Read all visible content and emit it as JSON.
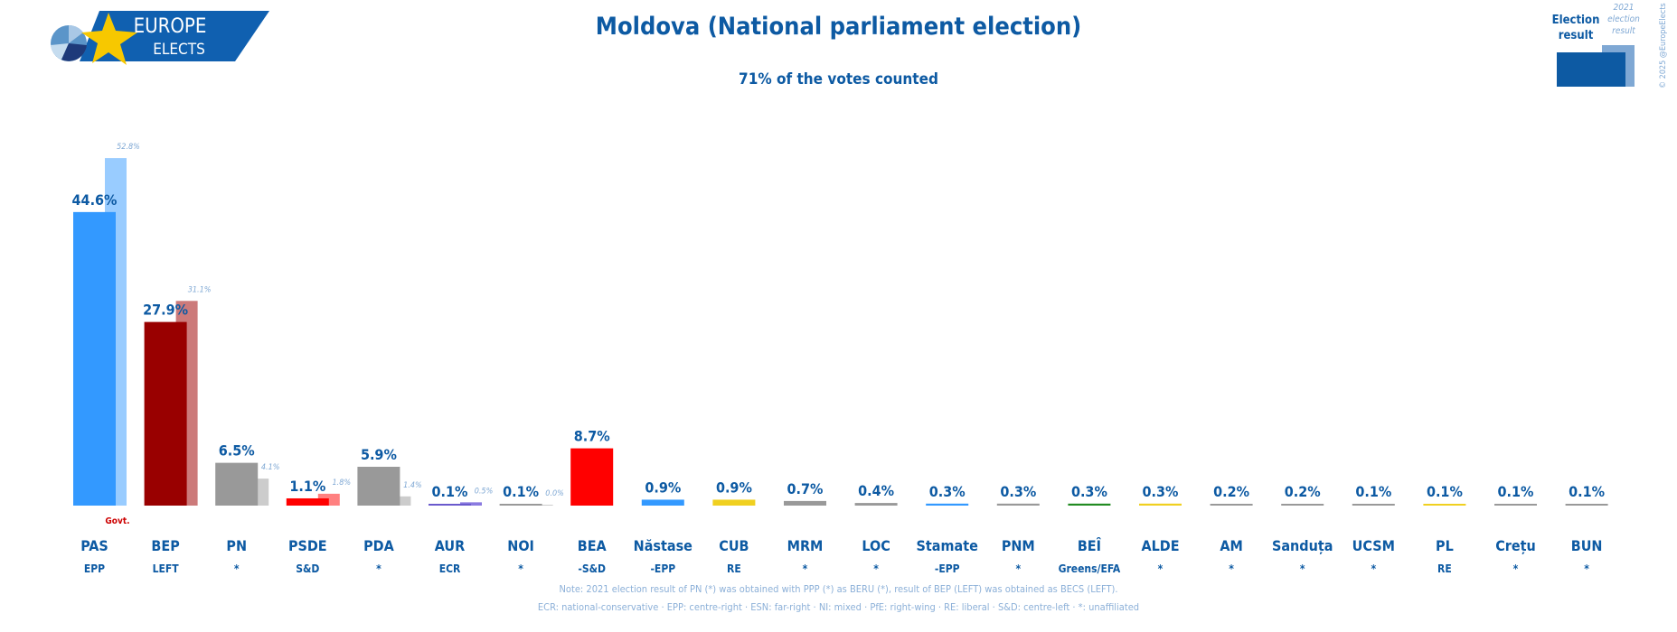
{
  "header": {
    "logo_line1": "EUROPE",
    "logo_line2": "ELECTS",
    "title": "Moldova (National parliament election)",
    "subtitle": "71% of the votes counted"
  },
  "legend": {
    "current_label": "Election result",
    "previous_label": "2021 election result",
    "copyright": "© 2025 @EuropeElects",
    "current_color": "#0d5aa3",
    "previous_color": "#7fa8d4"
  },
  "notes": {
    "line1": "Note: 2021 election result of PN (*) was obtained with PPP (*) as BERU (*), result of BEP (LEFT) was obtained as BECS (LEFT).",
    "line2": "ECR: national-conservative · EPP: centre-right · ESN: far-right · NI: mixed · PfE: right-wing · RE: liberal · S&D: centre-left · *: unaffiliated"
  },
  "chart_data": {
    "type": "bar",
    "title": "Moldova (National parliament election)",
    "subtitle": "71% of the votes counted",
    "xlabel": "",
    "ylabel": "",
    "ylim": [
      0,
      55
    ],
    "grid": false,
    "unit": "%",
    "categories": [
      "PAS",
      "BEP",
      "PN",
      "PSDE",
      "PDA",
      "AUR",
      "NOI",
      "BEA",
      "Năstase",
      "CUB",
      "MRM",
      "LOC",
      "Stamate",
      "PNM",
      "BEÎ",
      "ALDE",
      "AM",
      "Sanduța",
      "UCSM",
      "PL",
      "Crețu",
      "BUN"
    ],
    "affiliations": [
      "EPP",
      "LEFT",
      "*",
      "S&D",
      "*",
      "ECR",
      "*",
      "-S&D",
      "-EPP",
      "RE",
      "*",
      "*",
      "-EPP",
      "*",
      "Greens/EFA",
      "*",
      "*",
      "*",
      "*",
      "RE",
      "*",
      "*"
    ],
    "annotations": [
      {
        "category": "PAS",
        "text": "Govt."
      }
    ],
    "colors": [
      "#3399ff",
      "#990000",
      "#999999",
      "#ff0000",
      "#999999",
      "#6a5acd",
      "#999999",
      "#ff0000",
      "#3399ff",
      "#f0d020",
      "#999999",
      "#999999",
      "#3399ff",
      "#999999",
      "#228b22",
      "#f0d020",
      "#999999",
      "#999999",
      "#999999",
      "#f0d020",
      "#999999",
      "#999999"
    ],
    "prev_colors": [
      "#99ccff",
      "#cc7a7a",
      "#cccccc",
      "#ff8080",
      "#cccccc",
      "#8a7ae0"
    ],
    "series": [
      {
        "name": "Election result",
        "values": [
          44.6,
          27.9,
          6.5,
          1.1,
          5.9,
          0.1,
          0.1,
          8.7,
          0.9,
          0.9,
          0.7,
          0.4,
          0.3,
          0.3,
          0.3,
          0.3,
          0.2,
          0.2,
          0.1,
          0.1,
          0.1,
          0.1
        ]
      },
      {
        "name": "2021 election result",
        "values": [
          52.8,
          31.1,
          4.1,
          1.8,
          1.4,
          0.5,
          0.0,
          null,
          null,
          null,
          null,
          null,
          null,
          null,
          null,
          null,
          null,
          null,
          null,
          null,
          null,
          null
        ]
      }
    ]
  }
}
